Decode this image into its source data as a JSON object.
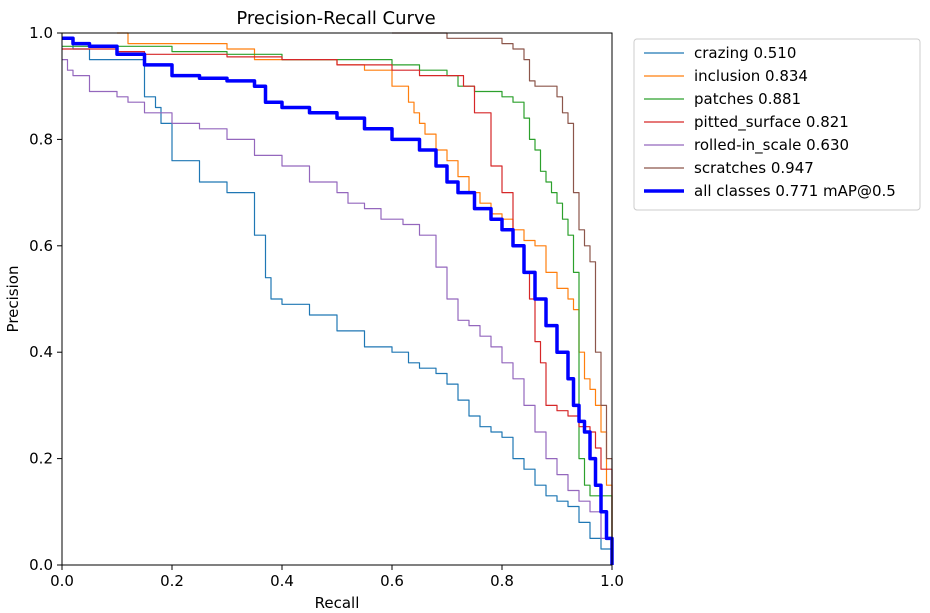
{
  "chart_data": {
    "type": "line",
    "title": "Precision-Recall Curve",
    "xlabel": "Recall",
    "ylabel": "Precision",
    "xlim": [
      0,
      1
    ],
    "ylim": [
      0,
      1
    ],
    "xticks": [
      "0.0",
      "0.2",
      "0.4",
      "0.6",
      "0.8",
      "1.0"
    ],
    "yticks": [
      "0.0",
      "0.2",
      "0.4",
      "0.6",
      "0.8",
      "1.0"
    ],
    "grid": false,
    "legend_position": "outside-top-right",
    "series": [
      {
        "name": "crazing 0.510",
        "color": "#1f77b4",
        "bold": false,
        "x": [
          0,
          0.02,
          0.05,
          0.08,
          0.12,
          0.15,
          0.17,
          0.18,
          0.2,
          0.2,
          0.25,
          0.25,
          0.3,
          0.3,
          0.35,
          0.37,
          0.38,
          0.38,
          0.4,
          0.4,
          0.45,
          0.5,
          0.55,
          0.6,
          0.63,
          0.65,
          0.68,
          0.7,
          0.72,
          0.74,
          0.76,
          0.78,
          0.8,
          0.82,
          0.84,
          0.86,
          0.88,
          0.9,
          0.92,
          0.94,
          0.96,
          0.98,
          1.0
        ],
        "y": [
          0.99,
          0.97,
          0.95,
          0.95,
          0.95,
          0.88,
          0.86,
          0.83,
          0.76,
          0.76,
          0.74,
          0.72,
          0.72,
          0.7,
          0.62,
          0.54,
          0.52,
          0.5,
          0.49,
          0.49,
          0.47,
          0.44,
          0.41,
          0.4,
          0.38,
          0.37,
          0.36,
          0.34,
          0.31,
          0.28,
          0.26,
          0.25,
          0.24,
          0.2,
          0.18,
          0.15,
          0.13,
          0.12,
          0.11,
          0.08,
          0.05,
          0.03,
          0.0
        ]
      },
      {
        "name": "inclusion 0.834",
        "color": "#ff7f0e",
        "bold": false,
        "x": [
          0.1,
          0.11,
          0.12,
          0.2,
          0.3,
          0.35,
          0.4,
          0.45,
          0.5,
          0.55,
          0.6,
          0.63,
          0.64,
          0.65,
          0.66,
          0.68,
          0.7,
          0.72,
          0.74,
          0.76,
          0.78,
          0.8,
          0.82,
          0.84,
          0.86,
          0.88,
          0.9,
          0.92,
          0.93,
          0.94,
          0.95,
          0.96,
          0.97,
          0.98,
          0.99,
          1.0
        ],
        "y": [
          1.0,
          1.0,
          0.98,
          0.98,
          0.97,
          0.95,
          0.95,
          0.95,
          0.94,
          0.93,
          0.9,
          0.87,
          0.85,
          0.83,
          0.81,
          0.78,
          0.76,
          0.73,
          0.7,
          0.68,
          0.66,
          0.65,
          0.63,
          0.61,
          0.6,
          0.55,
          0.52,
          0.5,
          0.48,
          0.4,
          0.35,
          0.33,
          0.3,
          0.25,
          0.15,
          0.0
        ]
      },
      {
        "name": "patches 0.881",
        "color": "#2ca02c",
        "bold": false,
        "x": [
          0,
          0.1,
          0.2,
          0.3,
          0.4,
          0.5,
          0.6,
          0.65,
          0.7,
          0.72,
          0.75,
          0.78,
          0.8,
          0.82,
          0.84,
          0.85,
          0.86,
          0.87,
          0.88,
          0.89,
          0.9,
          0.91,
          0.92,
          0.93,
          0.94,
          0.95,
          0.96,
          1.0
        ],
        "y": [
          0.975,
          0.975,
          0.965,
          0.96,
          0.95,
          0.95,
          0.94,
          0.93,
          0.92,
          0.9,
          0.89,
          0.89,
          0.88,
          0.87,
          0.84,
          0.8,
          0.78,
          0.74,
          0.72,
          0.7,
          0.68,
          0.65,
          0.62,
          0.55,
          0.2,
          0.15,
          0.13,
          0.0
        ]
      },
      {
        "name": "pitted_surface 0.821",
        "color": "#d62728",
        "bold": false,
        "x": [
          0,
          0.05,
          0.1,
          0.15,
          0.2,
          0.3,
          0.4,
          0.5,
          0.6,
          0.65,
          0.7,
          0.72,
          0.73,
          0.75,
          0.78,
          0.8,
          0.82,
          0.84,
          0.85,
          0.86,
          0.87,
          0.88,
          0.9,
          0.92,
          0.94,
          0.96,
          0.97,
          0.98,
          1.0
        ],
        "y": [
          0.97,
          0.97,
          0.965,
          0.96,
          0.96,
          0.955,
          0.95,
          0.94,
          0.93,
          0.92,
          0.92,
          0.92,
          0.9,
          0.85,
          0.75,
          0.7,
          0.6,
          0.55,
          0.5,
          0.42,
          0.38,
          0.3,
          0.29,
          0.28,
          0.26,
          0.25,
          0.22,
          0.18,
          0.0
        ]
      },
      {
        "name": "rolled-in_scale 0.630",
        "color": "#9467bd",
        "bold": false,
        "x": [
          0,
          0.01,
          0.02,
          0.05,
          0.1,
          0.12,
          0.15,
          0.2,
          0.25,
          0.3,
          0.35,
          0.4,
          0.45,
          0.5,
          0.52,
          0.55,
          0.58,
          0.62,
          0.65,
          0.68,
          0.7,
          0.72,
          0.74,
          0.76,
          0.78,
          0.8,
          0.82,
          0.84,
          0.86,
          0.88,
          0.9,
          0.92,
          0.94,
          0.96,
          0.98,
          1.0
        ],
        "y": [
          0.95,
          0.93,
          0.92,
          0.89,
          0.88,
          0.87,
          0.85,
          0.83,
          0.82,
          0.8,
          0.77,
          0.75,
          0.72,
          0.7,
          0.68,
          0.67,
          0.65,
          0.64,
          0.62,
          0.56,
          0.5,
          0.46,
          0.45,
          0.43,
          0.41,
          0.38,
          0.35,
          0.3,
          0.25,
          0.2,
          0.17,
          0.14,
          0.12,
          0.1,
          0.05,
          0.0
        ]
      },
      {
        "name": "scratches 0.947",
        "color": "#8c564b",
        "bold": false,
        "x": [
          0.6,
          0.7,
          0.78,
          0.8,
          0.82,
          0.84,
          0.85,
          0.86,
          0.88,
          0.9,
          0.91,
          0.92,
          0.93,
          0.94,
          0.95,
          0.96,
          0.97,
          0.98,
          0.99,
          1.0
        ],
        "y": [
          1.0,
          0.99,
          0.99,
          0.98,
          0.97,
          0.95,
          0.91,
          0.9,
          0.9,
          0.88,
          0.85,
          0.83,
          0.7,
          0.63,
          0.6,
          0.57,
          0.4,
          0.3,
          0.2,
          0.0
        ]
      },
      {
        "name": "all classes 0.771 mAP@0.5",
        "color": "#0000ff",
        "bold": true,
        "x": [
          0,
          0.02,
          0.05,
          0.1,
          0.15,
          0.2,
          0.25,
          0.3,
          0.35,
          0.37,
          0.4,
          0.45,
          0.5,
          0.55,
          0.6,
          0.65,
          0.68,
          0.7,
          0.72,
          0.75,
          0.78,
          0.8,
          0.82,
          0.84,
          0.86,
          0.88,
          0.9,
          0.92,
          0.93,
          0.94,
          0.95,
          0.96,
          0.97,
          0.98,
          0.99,
          1.0
        ],
        "y": [
          0.99,
          0.98,
          0.975,
          0.96,
          0.94,
          0.92,
          0.915,
          0.91,
          0.9,
          0.87,
          0.86,
          0.85,
          0.84,
          0.82,
          0.8,
          0.78,
          0.75,
          0.72,
          0.7,
          0.67,
          0.65,
          0.63,
          0.6,
          0.55,
          0.5,
          0.45,
          0.4,
          0.35,
          0.3,
          0.27,
          0.25,
          0.2,
          0.15,
          0.1,
          0.05,
          0.0
        ]
      }
    ]
  }
}
